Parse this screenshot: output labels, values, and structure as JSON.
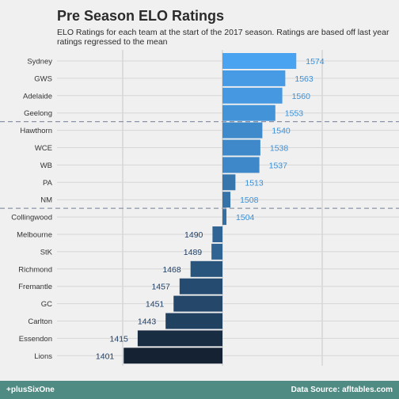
{
  "title": "Pre Season ELO Ratings",
  "subtitle": "ELO Ratings for each team at the start of the 2017 season. Ratings are based off last year ratings regressed to the mean",
  "footer": {
    "left": "+plusSixOne",
    "right": "Data Source: afltables.com"
  },
  "chart_data": {
    "type": "bar",
    "orientation": "horizontal",
    "baseline": 1500,
    "categories": [
      "Sydney",
      "GWS",
      "Adelaide",
      "Geelong",
      "Hawthorn",
      "WCE",
      "WB",
      "PA",
      "NM",
      "Collingwood",
      "Melbourne",
      "StK",
      "Richmond",
      "Fremantle",
      "GC",
      "Carlton",
      "Essendon",
      "Lions"
    ],
    "values": [
      1574,
      1563,
      1560,
      1553,
      1540,
      1538,
      1537,
      1513,
      1508,
      1504,
      1490,
      1489,
      1468,
      1457,
      1451,
      1443,
      1415,
      1401
    ],
    "xlim": [
      1390,
      1600
    ],
    "gridlines": [
      1400,
      1500,
      1600
    ],
    "reference_lines_after_index": [
      3,
      8
    ],
    "colors": {
      "high": "#4aa3f0",
      "low": "#142233",
      "label_above": "#3a8fd6",
      "label_below": "#1f3f66",
      "axis_text": "#333333",
      "grid": "#c8c8c8",
      "reference_line": "#8a94a6"
    }
  }
}
